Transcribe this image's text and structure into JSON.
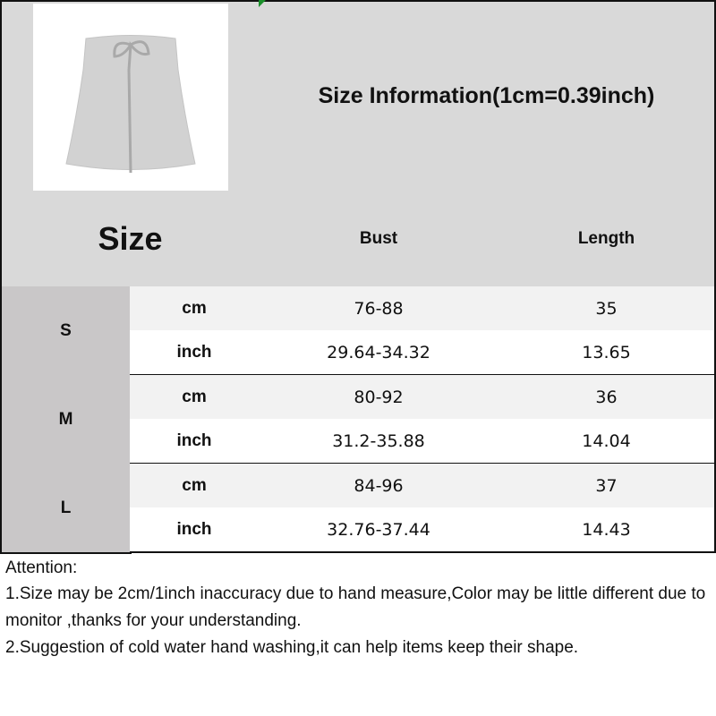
{
  "title": "Size Information(1cm=0.39inch)",
  "header": {
    "size": "Size",
    "columns": [
      "Bust",
      "Length"
    ]
  },
  "rows": [
    {
      "size": "S",
      "cm_label": "cm",
      "inch_label": "inch",
      "cm": [
        "76-88",
        "35"
      ],
      "inch": [
        "29.64-34.32",
        "13.65"
      ]
    },
    {
      "size": "M",
      "cm_label": "cm",
      "inch_label": "inch",
      "cm": [
        "80-92",
        "36"
      ],
      "inch": [
        "31.2-35.88",
        "14.04"
      ]
    },
    {
      "size": "L",
      "cm_label": "cm",
      "inch_label": "inch",
      "cm": [
        "84-96",
        "37"
      ],
      "inch": [
        "32.76-37.44",
        "14.43"
      ]
    }
  ],
  "notes": [
    "Attention:",
    "1.Size may be 2cm/1inch inaccuracy due to hand measure,Color may be little different due to monitor ,thanks for your understanding.",
    "2.Suggestion of cold water hand washing,it can help items keep their shape."
  ],
  "colors": {
    "header": "#d9d9d9",
    "size_label": "#c9c7c8",
    "cm_row": "#f2f2f2",
    "inch_row": "#ffffff"
  }
}
